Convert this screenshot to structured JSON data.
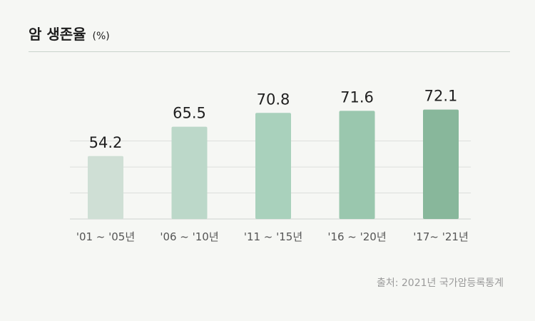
{
  "title": {
    "text": "암 생존율",
    "unit": "(%)"
  },
  "source": "출처: 2021년 국가암등록통계",
  "colors": {
    "bars": [
      "#cfdfd5",
      "#bcd8c9",
      "#a9d1bc",
      "#9ac7ae",
      "#88b79b"
    ],
    "grid": "#dcdfdc"
  },
  "chart_data": {
    "type": "bar",
    "title": "암 생존율 (%)",
    "categories": [
      "'01 ~ '05년",
      "'06 ~ '10년",
      "'11 ~ '15년",
      "'16 ~ '20년",
      "'17~ '21년"
    ],
    "values": [
      54.2,
      65.5,
      70.8,
      71.6,
      72.1
    ],
    "xlabel": "",
    "ylabel": "",
    "ylim": [
      30,
      75
    ],
    "grid": true
  }
}
